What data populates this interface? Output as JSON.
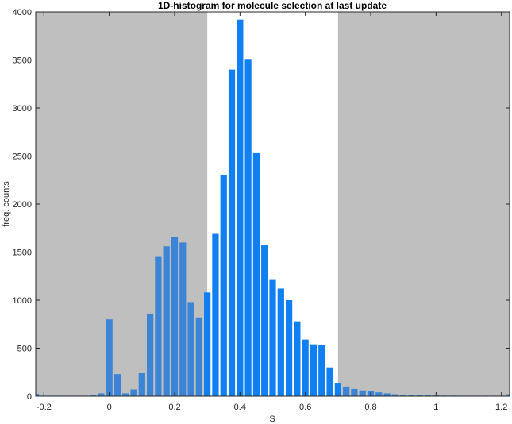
{
  "chart_data": {
    "type": "bar",
    "title": "1D-histogram for molecule selection at last update",
    "xlabel": "S",
    "ylabel": "freq. counts",
    "xlim": [
      -0.225,
      1.225
    ],
    "ylim": [
      0,
      4000
    ],
    "xticks": [
      -0.2,
      0,
      0.2,
      0.4,
      0.6,
      0.8,
      1,
      1.2
    ],
    "xtick_labels": [
      "-0.2",
      "0",
      "0.2",
      "0.4",
      "0.6",
      "0.8",
      "1",
      "1.2"
    ],
    "yticks": [
      0,
      500,
      1000,
      1500,
      2000,
      2500,
      3000,
      3500,
      4000
    ],
    "ytick_labels": [
      "0",
      "500",
      "1000",
      "1500",
      "2000",
      "2500",
      "3000",
      "3500",
      "4000"
    ],
    "selection_range": [
      0.3,
      0.7
    ],
    "colors": {
      "selected_bar": "#0f7ff2",
      "unselected_bar": "#3c84d6",
      "excluded_region": "#bfbfbf",
      "axis": "#262626"
    },
    "bin_width": 0.025,
    "x": [
      -0.225,
      -0.2,
      -0.175,
      -0.15,
      -0.125,
      -0.1,
      -0.075,
      -0.05,
      -0.025,
      0,
      0.025,
      0.05,
      0.075,
      0.1,
      0.125,
      0.15,
      0.175,
      0.2,
      0.225,
      0.25,
      0.275,
      0.3,
      0.325,
      0.35,
      0.375,
      0.4,
      0.425,
      0.45,
      0.475,
      0.5,
      0.525,
      0.55,
      0.575,
      0.6,
      0.625,
      0.65,
      0.675,
      0.7,
      0.725,
      0.75,
      0.775,
      0.8,
      0.825,
      0.85,
      0.875,
      0.9,
      0.925,
      0.95,
      0.975,
      1,
      1.025,
      1.05,
      1.075,
      1.1,
      1.125,
      1.15,
      1.175,
      1.2,
      1.225
    ],
    "values": [
      25,
      5,
      5,
      5,
      5,
      5,
      5,
      10,
      30,
      800,
      230,
      30,
      70,
      240,
      860,
      1450,
      1560,
      1660,
      1600,
      980,
      820,
      1080,
      1690,
      2300,
      3400,
      3920,
      3510,
      2530,
      1570,
      1210,
      1120,
      1000,
      780,
      590,
      540,
      530,
      300,
      140,
      100,
      75,
      60,
      50,
      40,
      30,
      20,
      15,
      10,
      10,
      8,
      8,
      6,
      6,
      5,
      5,
      5,
      5,
      5,
      5,
      20
    ]
  }
}
